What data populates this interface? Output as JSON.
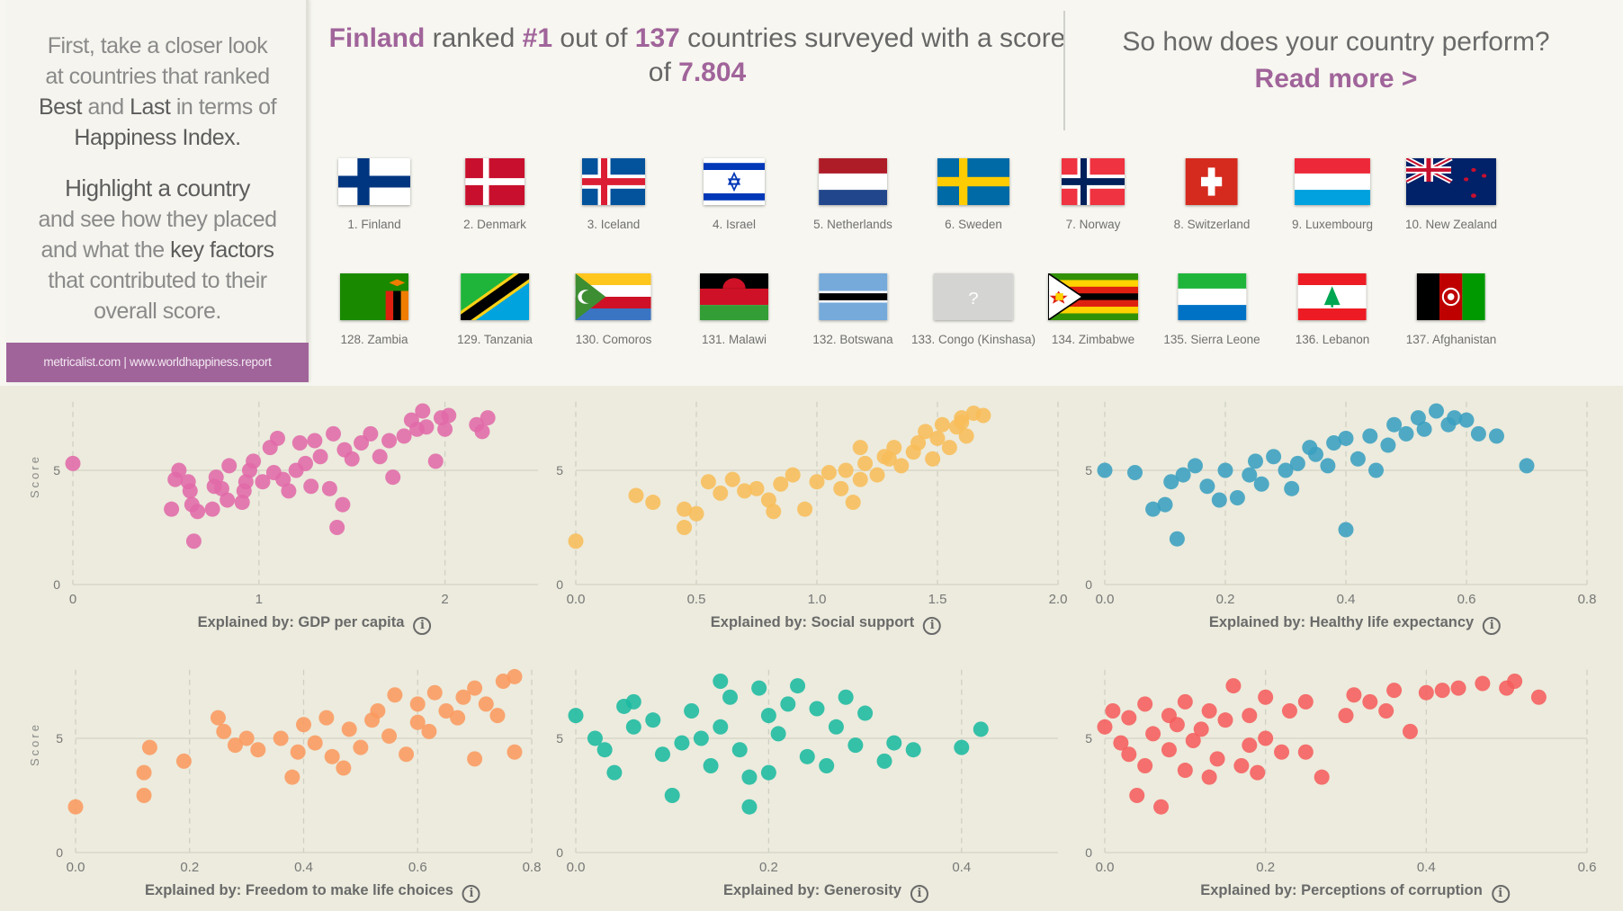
{
  "left_panel": {
    "intro": [
      "First, take a closer look",
      "at countries that ranked"
    ],
    "best": "Best",
    "and": " and ",
    "last": "Last",
    "in_terms": " in terms of",
    "happiness": "Happiness Index.",
    "highlight": "Highlight a country",
    "line2": "and see how they placed",
    "line3a": "and what the ",
    "key": "key factors",
    "line4": "that contributed to their",
    "line5": "overall score.",
    "source": "metricalist.com |  www.worldhappiness.report"
  },
  "headline": {
    "country": "Finland",
    "t1": " ranked ",
    "rank": "#1",
    "t2": " out of ",
    "total": "137",
    "t3": " countries surveyed with a score of ",
    "score": "7.804"
  },
  "cta": {
    "question": "So how does your country perform?",
    "link": "Read more >"
  },
  "colors": {
    "accent": "#a0649a",
    "gdp": "#e06aa9",
    "social": "#f8bd5a",
    "health": "#3a9fc0",
    "freedom": "#fb9a60",
    "generosity": "#1bb9a0",
    "corruption": "#f55d5d"
  },
  "top_countries": [
    {
      "label": "1. Finland",
      "icon": "flag-finland"
    },
    {
      "label": "2. Denmark",
      "icon": "flag-denmark"
    },
    {
      "label": "3. Iceland",
      "icon": "flag-iceland"
    },
    {
      "label": "4. Israel",
      "icon": "flag-israel"
    },
    {
      "label": "5. Netherlands",
      "icon": "flag-netherlands"
    },
    {
      "label": "6. Sweden",
      "icon": "flag-sweden"
    },
    {
      "label": "7. Norway",
      "icon": "flag-norway"
    },
    {
      "label": "8. Switzerland",
      "icon": "flag-switzerland"
    },
    {
      "label": "9. Luxembourg",
      "icon": "flag-luxembourg"
    },
    {
      "label": "10. New Zealand",
      "icon": "flag-newzealand"
    }
  ],
  "bottom_countries": [
    {
      "label": "128. Zambia",
      "icon": "flag-zambia"
    },
    {
      "label": "129. Tanzania",
      "icon": "flag-tanzania"
    },
    {
      "label": "130. Comoros",
      "icon": "flag-comoros"
    },
    {
      "label": "131. Malawi",
      "icon": "flag-malawi"
    },
    {
      "label": "132. Botswana",
      "icon": "flag-botswana"
    },
    {
      "label": "133. Congo (Kinshasa)",
      "icon": "flag-unknown",
      "glyph": "?"
    },
    {
      "label": "134. Zimbabwe",
      "icon": "flag-zimbabwe"
    },
    {
      "label": "135. Sierra Leone",
      "icon": "flag-sierraleone"
    },
    {
      "label": "136. Lebanon",
      "icon": "flag-lebanon"
    },
    {
      "label": "137. Afghanistan",
      "icon": "flag-afghanistan"
    }
  ],
  "chart_data": [
    {
      "type": "scatter",
      "xlabel": "Explained by: GDP per capita",
      "ylabel": "Score",
      "color": "#e06aa9",
      "xlim": [
        0,
        2.5
      ],
      "ylim": [
        0,
        8
      ],
      "xticks": [
        "0",
        "1",
        "2"
      ],
      "xtickvals": [
        0,
        1,
        2
      ],
      "yticks": [
        "0",
        "5"
      ],
      "grid": true,
      "points": [
        [
          0,
          5.3
        ],
        [
          0.53,
          3.3
        ],
        [
          0.55,
          4.6
        ],
        [
          0.57,
          5.0
        ],
        [
          0.62,
          4.5
        ],
        [
          0.63,
          4.1
        ],
        [
          0.64,
          3.5
        ],
        [
          0.65,
          1.9
        ],
        [
          0.67,
          3.2
        ],
        [
          0.75,
          3.3
        ],
        [
          0.76,
          4.3
        ],
        [
          0.77,
          4.7
        ],
        [
          0.8,
          4.2
        ],
        [
          0.83,
          3.7
        ],
        [
          0.84,
          5.2
        ],
        [
          0.91,
          3.6
        ],
        [
          0.92,
          4.1
        ],
        [
          0.93,
          4.5
        ],
        [
          0.95,
          5.0
        ],
        [
          0.97,
          5.4
        ],
        [
          1.02,
          4.5
        ],
        [
          1.06,
          6.0
        ],
        [
          1.08,
          4.9
        ],
        [
          1.1,
          6.4
        ],
        [
          1.13,
          4.6
        ],
        [
          1.16,
          4.1
        ],
        [
          1.2,
          5.0
        ],
        [
          1.22,
          6.2
        ],
        [
          1.25,
          5.3
        ],
        [
          1.28,
          4.3
        ],
        [
          1.3,
          6.3
        ],
        [
          1.33,
          5.6
        ],
        [
          1.38,
          4.2
        ],
        [
          1.4,
          6.6
        ],
        [
          1.42,
          2.5
        ],
        [
          1.45,
          3.5
        ],
        [
          1.46,
          5.9
        ],
        [
          1.5,
          5.5
        ],
        [
          1.55,
          6.2
        ],
        [
          1.6,
          6.6
        ],
        [
          1.65,
          5.6
        ],
        [
          1.7,
          6.3
        ],
        [
          1.72,
          4.7
        ],
        [
          1.78,
          6.5
        ],
        [
          1.82,
          7.2
        ],
        [
          1.85,
          6.8
        ],
        [
          1.88,
          7.6
        ],
        [
          1.9,
          6.9
        ],
        [
          1.95,
          5.4
        ],
        [
          1.98,
          7.3
        ],
        [
          2.02,
          7.4
        ],
        [
          2.0,
          6.8
        ],
        [
          2.17,
          7.0
        ],
        [
          2.2,
          6.7
        ],
        [
          2.23,
          7.3
        ]
      ]
    },
    {
      "type": "scatter",
      "xlabel": "Explained by: Social support",
      "ylabel": "Score",
      "color": "#f8bd5a",
      "xlim": [
        0,
        2
      ],
      "ylim": [
        0,
        8
      ],
      "xticks": [
        "0.0",
        "0.5",
        "1.0",
        "1.5",
        "2.0"
      ],
      "xtickvals": [
        0,
        0.5,
        1,
        1.5,
        2
      ],
      "yticks": [
        "0",
        "5"
      ],
      "grid": true,
      "points": [
        [
          0,
          1.9
        ],
        [
          0.25,
          3.9
        ],
        [
          0.32,
          3.6
        ],
        [
          0.45,
          3.3
        ],
        [
          0.45,
          2.5
        ],
        [
          0.5,
          3.1
        ],
        [
          0.55,
          4.5
        ],
        [
          0.6,
          4.0
        ],
        [
          0.65,
          4.6
        ],
        [
          0.7,
          4.1
        ],
        [
          0.75,
          4.2
        ],
        [
          0.8,
          3.7
        ],
        [
          0.82,
          3.2
        ],
        [
          0.85,
          4.4
        ],
        [
          0.9,
          4.8
        ],
        [
          0.95,
          3.3
        ],
        [
          1.0,
          4.5
        ],
        [
          1.05,
          4.9
        ],
        [
          1.1,
          4.2
        ],
        [
          1.12,
          5.0
        ],
        [
          1.15,
          3.6
        ],
        [
          1.18,
          4.6
        ],
        [
          1.18,
          6.0
        ],
        [
          1.2,
          5.3
        ],
        [
          1.25,
          4.8
        ],
        [
          1.28,
          5.6
        ],
        [
          1.3,
          5.5
        ],
        [
          1.32,
          6.0
        ],
        [
          1.35,
          5.2
        ],
        [
          1.4,
          5.8
        ],
        [
          1.42,
          6.2
        ],
        [
          1.45,
          6.7
        ],
        [
          1.48,
          5.5
        ],
        [
          1.5,
          6.4
        ],
        [
          1.52,
          7.0
        ],
        [
          1.55,
          6.0
        ],
        [
          1.58,
          6.9
        ],
        [
          1.6,
          7.3
        ],
        [
          1.6,
          7.1
        ],
        [
          1.62,
          6.5
        ],
        [
          1.65,
          7.5
        ],
        [
          1.69,
          7.4
        ]
      ]
    },
    {
      "type": "scatter",
      "xlabel": "Explained by: Healthy life expectancy",
      "ylabel": "Score",
      "color": "#3a9fc0",
      "xlim": [
        0,
        0.8
      ],
      "ylim": [
        0,
        8
      ],
      "xticks": [
        "0.0",
        "0.2",
        "0.4",
        "0.6",
        "0.8"
      ],
      "xtickvals": [
        0,
        0.2,
        0.4,
        0.6,
        0.8
      ],
      "yticks": [
        "0",
        "5"
      ],
      "grid": true,
      "points": [
        [
          0,
          5.0
        ],
        [
          0.05,
          4.9
        ],
        [
          0.08,
          3.3
        ],
        [
          0.1,
          3.5
        ],
        [
          0.11,
          4.5
        ],
        [
          0.12,
          2.0
        ],
        [
          0.13,
          4.8
        ],
        [
          0.15,
          5.2
        ],
        [
          0.17,
          4.3
        ],
        [
          0.19,
          3.7
        ],
        [
          0.2,
          5.0
        ],
        [
          0.22,
          3.8
        ],
        [
          0.24,
          4.8
        ],
        [
          0.25,
          5.4
        ],
        [
          0.26,
          4.4
        ],
        [
          0.28,
          5.6
        ],
        [
          0.3,
          5.0
        ],
        [
          0.31,
          4.2
        ],
        [
          0.32,
          5.3
        ],
        [
          0.34,
          6.0
        ],
        [
          0.35,
          5.7
        ],
        [
          0.37,
          5.2
        ],
        [
          0.38,
          6.2
        ],
        [
          0.4,
          6.4
        ],
        [
          0.4,
          2.4
        ],
        [
          0.42,
          5.5
        ],
        [
          0.44,
          6.5
        ],
        [
          0.45,
          5.0
        ],
        [
          0.47,
          6.1
        ],
        [
          0.48,
          7.0
        ],
        [
          0.5,
          6.6
        ],
        [
          0.52,
          7.3
        ],
        [
          0.53,
          6.8
        ],
        [
          0.55,
          7.6
        ],
        [
          0.57,
          7.0
        ],
        [
          0.58,
          7.3
        ],
        [
          0.6,
          7.2
        ],
        [
          0.62,
          6.6
        ],
        [
          0.65,
          6.5
        ],
        [
          0.7,
          5.2
        ]
      ]
    },
    {
      "type": "scatter",
      "xlabel": "Explained by: Freedom to make life choices",
      "ylabel": "Score",
      "color": "#fb9a60",
      "xlim": [
        0,
        0.8
      ],
      "ylim": [
        0,
        8
      ],
      "xticks": [
        "0.0",
        "0.2",
        "0.4",
        "0.6",
        "0.8"
      ],
      "xtickvals": [
        0,
        0.2,
        0.4,
        0.6,
        0.8
      ],
      "yticks": [
        "0",
        "5"
      ],
      "grid": true,
      "points": [
        [
          0,
          2.0
        ],
        [
          0.12,
          3.5
        ],
        [
          0.12,
          2.5
        ],
        [
          0.13,
          4.6
        ],
        [
          0.19,
          4.0
        ],
        [
          0.25,
          5.9
        ],
        [
          0.26,
          5.3
        ],
        [
          0.28,
          4.7
        ],
        [
          0.3,
          5.0
        ],
        [
          0.32,
          4.5
        ],
        [
          0.36,
          5.0
        ],
        [
          0.38,
          3.3
        ],
        [
          0.39,
          4.4
        ],
        [
          0.4,
          5.6
        ],
        [
          0.42,
          4.8
        ],
        [
          0.44,
          5.9
        ],
        [
          0.45,
          4.2
        ],
        [
          0.47,
          3.7
        ],
        [
          0.48,
          5.4
        ],
        [
          0.5,
          4.6
        ],
        [
          0.52,
          5.8
        ],
        [
          0.53,
          6.2
        ],
        [
          0.55,
          5.1
        ],
        [
          0.56,
          6.9
        ],
        [
          0.58,
          4.3
        ],
        [
          0.6,
          6.5
        ],
        [
          0.6,
          5.7
        ],
        [
          0.62,
          5.3
        ],
        [
          0.63,
          7.0
        ],
        [
          0.65,
          6.2
        ],
        [
          0.67,
          5.9
        ],
        [
          0.68,
          6.8
        ],
        [
          0.7,
          7.2
        ],
        [
          0.7,
          4.1
        ],
        [
          0.72,
          6.5
        ],
        [
          0.74,
          6.0
        ],
        [
          0.75,
          7.5
        ],
        [
          0.77,
          4.4
        ],
        [
          0.77,
          7.7
        ]
      ]
    },
    {
      "type": "scatter",
      "xlabel": "Explained by: Generosity",
      "ylabel": "Score",
      "color": "#1bb9a0",
      "xlim": [
        0,
        0.5
      ],
      "ylim": [
        0,
        8
      ],
      "xticks": [
        "0.0",
        "0.2",
        "0.4"
      ],
      "xtickvals": [
        0,
        0.2,
        0.4
      ],
      "yticks": [
        "0",
        "5"
      ],
      "grid": true,
      "points": [
        [
          0,
          6.0
        ],
        [
          0.02,
          5.0
        ],
        [
          0.03,
          4.5
        ],
        [
          0.04,
          3.5
        ],
        [
          0.05,
          6.4
        ],
        [
          0.06,
          5.5
        ],
        [
          0.06,
          6.6
        ],
        [
          0.08,
          5.8
        ],
        [
          0.09,
          4.3
        ],
        [
          0.1,
          2.5
        ],
        [
          0.11,
          4.8
        ],
        [
          0.12,
          6.2
        ],
        [
          0.13,
          5.0
        ],
        [
          0.14,
          3.8
        ],
        [
          0.15,
          7.5
        ],
        [
          0.15,
          5.5
        ],
        [
          0.16,
          6.8
        ],
        [
          0.17,
          4.5
        ],
        [
          0.18,
          2.0
        ],
        [
          0.18,
          3.3
        ],
        [
          0.19,
          7.2
        ],
        [
          0.2,
          6.0
        ],
        [
          0.2,
          3.5
        ],
        [
          0.21,
          5.2
        ],
        [
          0.22,
          6.5
        ],
        [
          0.23,
          7.3
        ],
        [
          0.24,
          4.2
        ],
        [
          0.25,
          6.3
        ],
        [
          0.26,
          3.8
        ],
        [
          0.27,
          5.5
        ],
        [
          0.28,
          6.8
        ],
        [
          0.29,
          4.7
        ],
        [
          0.3,
          6.1
        ],
        [
          0.32,
          4.0
        ],
        [
          0.33,
          4.8
        ],
        [
          0.35,
          4.5
        ],
        [
          0.4,
          4.6
        ],
        [
          0.42,
          5.4
        ]
      ]
    },
    {
      "type": "scatter",
      "xlabel": "Explained by: Perceptions of corruption",
      "ylabel": "Score",
      "color": "#f55d5d",
      "xlim": [
        0,
        0.6
      ],
      "ylim": [
        0,
        8
      ],
      "xticks": [
        "0.0",
        "0.2",
        "0.4",
        "0.6"
      ],
      "xtickvals": [
        0,
        0.2,
        0.4,
        0.6
      ],
      "yticks": [
        "0",
        "5"
      ],
      "grid": true,
      "points": [
        [
          0,
          5.5
        ],
        [
          0.01,
          6.2
        ],
        [
          0.02,
          4.8
        ],
        [
          0.03,
          5.9
        ],
        [
          0.03,
          4.3
        ],
        [
          0.04,
          2.5
        ],
        [
          0.05,
          6.5
        ],
        [
          0.05,
          3.8
        ],
        [
          0.06,
          5.2
        ],
        [
          0.07,
          2.0
        ],
        [
          0.08,
          6.0
        ],
        [
          0.08,
          4.5
        ],
        [
          0.09,
          5.6
        ],
        [
          0.1,
          3.6
        ],
        [
          0.1,
          6.6
        ],
        [
          0.11,
          4.9
        ],
        [
          0.12,
          5.4
        ],
        [
          0.13,
          3.3
        ],
        [
          0.13,
          6.2
        ],
        [
          0.14,
          4.1
        ],
        [
          0.15,
          5.8
        ],
        [
          0.16,
          7.3
        ],
        [
          0.17,
          3.8
        ],
        [
          0.18,
          6.0
        ],
        [
          0.18,
          4.7
        ],
        [
          0.19,
          3.5
        ],
        [
          0.2,
          5.0
        ],
        [
          0.2,
          6.8
        ],
        [
          0.22,
          4.4
        ],
        [
          0.23,
          6.2
        ],
        [
          0.25,
          6.6
        ],
        [
          0.25,
          4.4
        ],
        [
          0.27,
          3.3
        ],
        [
          0.3,
          6.0
        ],
        [
          0.31,
          6.9
        ],
        [
          0.33,
          6.6
        ],
        [
          0.35,
          6.2
        ],
        [
          0.36,
          7.1
        ],
        [
          0.38,
          5.3
        ],
        [
          0.4,
          7.0
        ],
        [
          0.42,
          7.1
        ],
        [
          0.44,
          7.2
        ],
        [
          0.47,
          7.4
        ],
        [
          0.5,
          7.2
        ],
        [
          0.51,
          7.5
        ],
        [
          0.54,
          6.8
        ]
      ]
    }
  ]
}
